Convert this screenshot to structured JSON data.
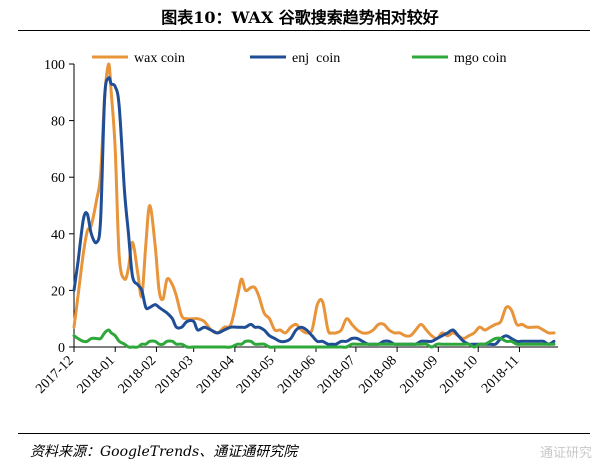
{
  "figure": {
    "title": "图表10：WAX 谷歌搜索趋势相对较好",
    "source": "资料来源：GoogleTrends、通证通研究院",
    "watermark": "通证研究"
  },
  "chart_data": {
    "type": "line",
    "title": "",
    "xlabel": "",
    "ylabel": "",
    "ylim": [
      0,
      100
    ],
    "yticks": [
      0,
      20,
      40,
      60,
      80,
      100
    ],
    "xlim": [
      "2017-12-01",
      "2018-11-30"
    ],
    "xtick_labels": [
      "2017-12",
      "2018-01",
      "2018-02",
      "2018-03",
      "2018-04",
      "2018-05",
      "2018-06",
      "2018-07",
      "2018-08",
      "2018-09",
      "2018-10",
      "2018-11"
    ],
    "xtick_dates": [
      "2017-12-01",
      "2018-01-01",
      "2018-02-01",
      "2018-03-01",
      "2018-04-01",
      "2018-05-01",
      "2018-06-01",
      "2018-07-01",
      "2018-08-01",
      "2018-09-01",
      "2018-10-01",
      "2018-11-01"
    ],
    "legend": {
      "position": "top",
      "entries": [
        "wax coin",
        "enj  coin",
        "mgo coin"
      ]
    },
    "grid": false,
    "series": [
      {
        "name": "wax coin",
        "color": "#E8943A",
        "x": [
          "2017-12-01",
          "2017-12-04",
          "2017-12-08",
          "2017-12-11",
          "2017-12-14",
          "2017-12-18",
          "2017-12-21",
          "2017-12-24",
          "2017-12-27",
          "2017-12-29",
          "2018-01-01",
          "2018-01-04",
          "2018-01-08",
          "2018-01-11",
          "2018-01-14",
          "2018-01-18",
          "2018-01-21",
          "2018-01-24",
          "2018-01-27",
          "2018-01-31",
          "2018-02-03",
          "2018-02-06",
          "2018-02-09",
          "2018-02-13",
          "2018-02-16",
          "2018-02-20",
          "2018-02-24",
          "2018-03-01",
          "2018-03-04",
          "2018-03-09",
          "2018-03-14",
          "2018-03-19",
          "2018-03-24",
          "2018-03-29",
          "2018-04-03",
          "2018-04-06",
          "2018-04-09",
          "2018-04-13",
          "2018-04-16",
          "2018-04-19",
          "2018-04-23",
          "2018-04-27",
          "2018-05-01",
          "2018-05-05",
          "2018-05-09",
          "2018-05-13",
          "2018-05-17",
          "2018-05-21",
          "2018-05-25",
          "2018-05-29",
          "2018-06-02",
          "2018-06-06",
          "2018-06-10",
          "2018-06-13",
          "2018-06-16",
          "2018-06-20",
          "2018-06-24",
          "2018-06-28",
          "2018-07-02",
          "2018-07-06",
          "2018-07-10",
          "2018-07-14",
          "2018-07-18",
          "2018-07-22",
          "2018-07-26",
          "2018-07-30",
          "2018-08-03",
          "2018-08-07",
          "2018-08-11",
          "2018-08-15",
          "2018-08-19",
          "2018-08-23",
          "2018-08-27",
          "2018-08-31",
          "2018-09-04",
          "2018-09-08",
          "2018-09-12",
          "2018-09-16",
          "2018-09-20",
          "2018-09-24",
          "2018-09-28",
          "2018-10-02",
          "2018-10-06",
          "2018-10-10",
          "2018-10-14",
          "2018-10-18",
          "2018-10-22",
          "2018-10-26",
          "2018-10-30",
          "2018-11-03",
          "2018-11-07",
          "2018-11-11",
          "2018-11-15",
          "2018-11-19",
          "2018-11-23",
          "2018-11-27"
        ],
        "values": [
          7,
          18,
          33,
          41,
          43,
          52,
          61,
          88,
          100,
          90,
          70,
          32,
          24,
          28,
          37,
          26,
          18,
          36,
          50,
          36,
          20,
          17,
          24,
          22,
          18,
          11,
          10,
          10,
          10,
          9,
          6,
          5,
          7,
          8,
          18,
          24,
          20,
          21,
          21,
          18,
          12,
          10,
          6,
          6,
          5,
          7,
          8,
          6,
          5,
          6,
          15,
          16,
          6,
          5,
          5,
          6,
          10,
          8,
          6,
          5,
          5,
          6,
          8,
          8,
          6,
          5,
          5,
          4,
          4,
          6,
          8,
          6,
          4,
          3,
          5,
          4,
          5,
          4,
          3,
          4,
          5,
          7,
          6,
          7,
          8,
          9,
          14,
          13,
          8,
          8,
          7,
          7,
          7,
          6,
          5,
          5
        ]
      },
      {
        "name": "enj  coin",
        "color": "#1F4E96",
        "x": [
          "2017-12-01",
          "2017-12-04",
          "2017-12-08",
          "2017-12-11",
          "2017-12-14",
          "2017-12-18",
          "2017-12-21",
          "2017-12-24",
          "2017-12-27",
          "2017-12-29",
          "2018-01-01",
          "2018-01-04",
          "2018-01-08",
          "2018-01-11",
          "2018-01-14",
          "2018-01-18",
          "2018-01-21",
          "2018-01-24",
          "2018-01-27",
          "2018-01-31",
          "2018-02-03",
          "2018-02-06",
          "2018-02-09",
          "2018-02-13",
          "2018-02-16",
          "2018-02-20",
          "2018-02-24",
          "2018-03-01",
          "2018-03-04",
          "2018-03-09",
          "2018-03-14",
          "2018-03-19",
          "2018-03-24",
          "2018-03-29",
          "2018-04-03",
          "2018-04-06",
          "2018-04-09",
          "2018-04-13",
          "2018-04-16",
          "2018-04-19",
          "2018-04-23",
          "2018-04-27",
          "2018-05-01",
          "2018-05-05",
          "2018-05-09",
          "2018-05-13",
          "2018-05-17",
          "2018-05-21",
          "2018-05-25",
          "2018-05-29",
          "2018-06-02",
          "2018-06-06",
          "2018-06-10",
          "2018-06-13",
          "2018-06-16",
          "2018-06-20",
          "2018-06-24",
          "2018-06-28",
          "2018-07-02",
          "2018-07-06",
          "2018-07-10",
          "2018-07-14",
          "2018-07-18",
          "2018-07-22",
          "2018-07-26",
          "2018-07-30",
          "2018-08-03",
          "2018-08-07",
          "2018-08-11",
          "2018-08-15",
          "2018-08-19",
          "2018-08-23",
          "2018-08-27",
          "2018-08-31",
          "2018-09-04",
          "2018-09-08",
          "2018-09-12",
          "2018-09-16",
          "2018-09-20",
          "2018-09-24",
          "2018-09-28",
          "2018-10-02",
          "2018-10-06",
          "2018-10-10",
          "2018-10-14",
          "2018-10-18",
          "2018-10-22",
          "2018-10-26",
          "2018-10-30",
          "2018-11-03",
          "2018-11-07",
          "2018-11-11",
          "2018-11-15",
          "2018-11-19",
          "2018-11-23",
          "2018-11-27"
        ],
        "values": [
          20,
          30,
          45,
          47,
          40,
          37,
          45,
          88,
          95,
          93,
          92,
          85,
          55,
          40,
          25,
          22,
          20,
          14,
          14,
          15,
          14,
          13,
          12,
          10,
          7,
          7,
          9,
          9,
          6,
          7,
          6,
          5,
          6,
          7,
          7,
          7,
          7,
          8,
          7,
          7,
          6,
          4,
          3,
          2,
          2,
          3,
          6,
          7,
          6,
          4,
          2,
          2,
          1,
          1,
          1,
          2,
          2,
          3,
          3,
          2,
          1,
          1,
          1,
          2,
          2,
          1,
          1,
          1,
          1,
          1,
          2,
          2,
          2,
          3,
          4,
          5,
          6,
          4,
          2,
          1,
          1,
          1,
          1,
          1,
          1,
          3,
          4,
          3,
          2,
          2,
          2,
          2,
          2,
          2,
          1,
          2
        ]
      },
      {
        "name": "mgo coin",
        "color": "#2EA83A",
        "x": [
          "2017-12-01",
          "2017-12-04",
          "2017-12-08",
          "2017-12-11",
          "2017-12-14",
          "2017-12-18",
          "2017-12-21",
          "2017-12-24",
          "2017-12-27",
          "2017-12-29",
          "2018-01-01",
          "2018-01-04",
          "2018-01-08",
          "2018-01-11",
          "2018-01-14",
          "2018-01-18",
          "2018-01-21",
          "2018-01-24",
          "2018-01-27",
          "2018-01-31",
          "2018-02-03",
          "2018-02-06",
          "2018-02-09",
          "2018-02-13",
          "2018-02-16",
          "2018-02-20",
          "2018-02-24",
          "2018-03-01",
          "2018-03-04",
          "2018-03-09",
          "2018-03-14",
          "2018-03-19",
          "2018-03-24",
          "2018-03-29",
          "2018-04-03",
          "2018-04-06",
          "2018-04-09",
          "2018-04-13",
          "2018-04-16",
          "2018-04-19",
          "2018-04-23",
          "2018-04-27",
          "2018-05-01",
          "2018-05-05",
          "2018-05-09",
          "2018-05-13",
          "2018-05-17",
          "2018-05-21",
          "2018-05-25",
          "2018-05-29",
          "2018-06-02",
          "2018-06-06",
          "2018-06-10",
          "2018-06-13",
          "2018-06-16",
          "2018-06-20",
          "2018-06-24",
          "2018-06-28",
          "2018-07-02",
          "2018-07-06",
          "2018-07-10",
          "2018-07-14",
          "2018-07-18",
          "2018-07-22",
          "2018-07-26",
          "2018-07-30",
          "2018-08-03",
          "2018-08-07",
          "2018-08-11",
          "2018-08-15",
          "2018-08-19",
          "2018-08-23",
          "2018-08-27",
          "2018-08-31",
          "2018-09-04",
          "2018-09-08",
          "2018-09-12",
          "2018-09-16",
          "2018-09-20",
          "2018-09-24",
          "2018-09-28",
          "2018-10-02",
          "2018-10-06",
          "2018-10-10",
          "2018-10-14",
          "2018-10-18",
          "2018-10-22",
          "2018-10-26",
          "2018-10-30",
          "2018-11-03",
          "2018-11-07",
          "2018-11-11",
          "2018-11-15",
          "2018-11-19",
          "2018-11-23",
          "2018-11-27"
        ],
        "values": [
          4,
          3,
          2,
          2,
          3,
          3,
          3,
          5,
          6,
          5,
          4,
          2,
          1,
          0,
          0,
          0,
          1,
          1,
          2,
          2,
          1,
          1,
          2,
          2,
          1,
          1,
          0,
          0,
          0,
          0,
          0,
          0,
          0,
          0,
          1,
          1,
          2,
          2,
          1,
          1,
          1,
          0,
          0,
          0,
          0,
          0,
          0,
          0,
          0,
          0,
          0,
          0,
          0,
          0,
          0,
          0,
          0,
          1,
          1,
          1,
          1,
          1,
          1,
          1,
          1,
          1,
          1,
          1,
          1,
          1,
          1,
          1,
          0,
          1,
          1,
          1,
          1,
          1,
          1,
          1,
          0,
          1,
          1,
          2,
          3,
          3,
          2,
          2,
          1,
          1,
          1,
          1,
          1,
          1,
          1,
          1
        ]
      }
    ]
  }
}
